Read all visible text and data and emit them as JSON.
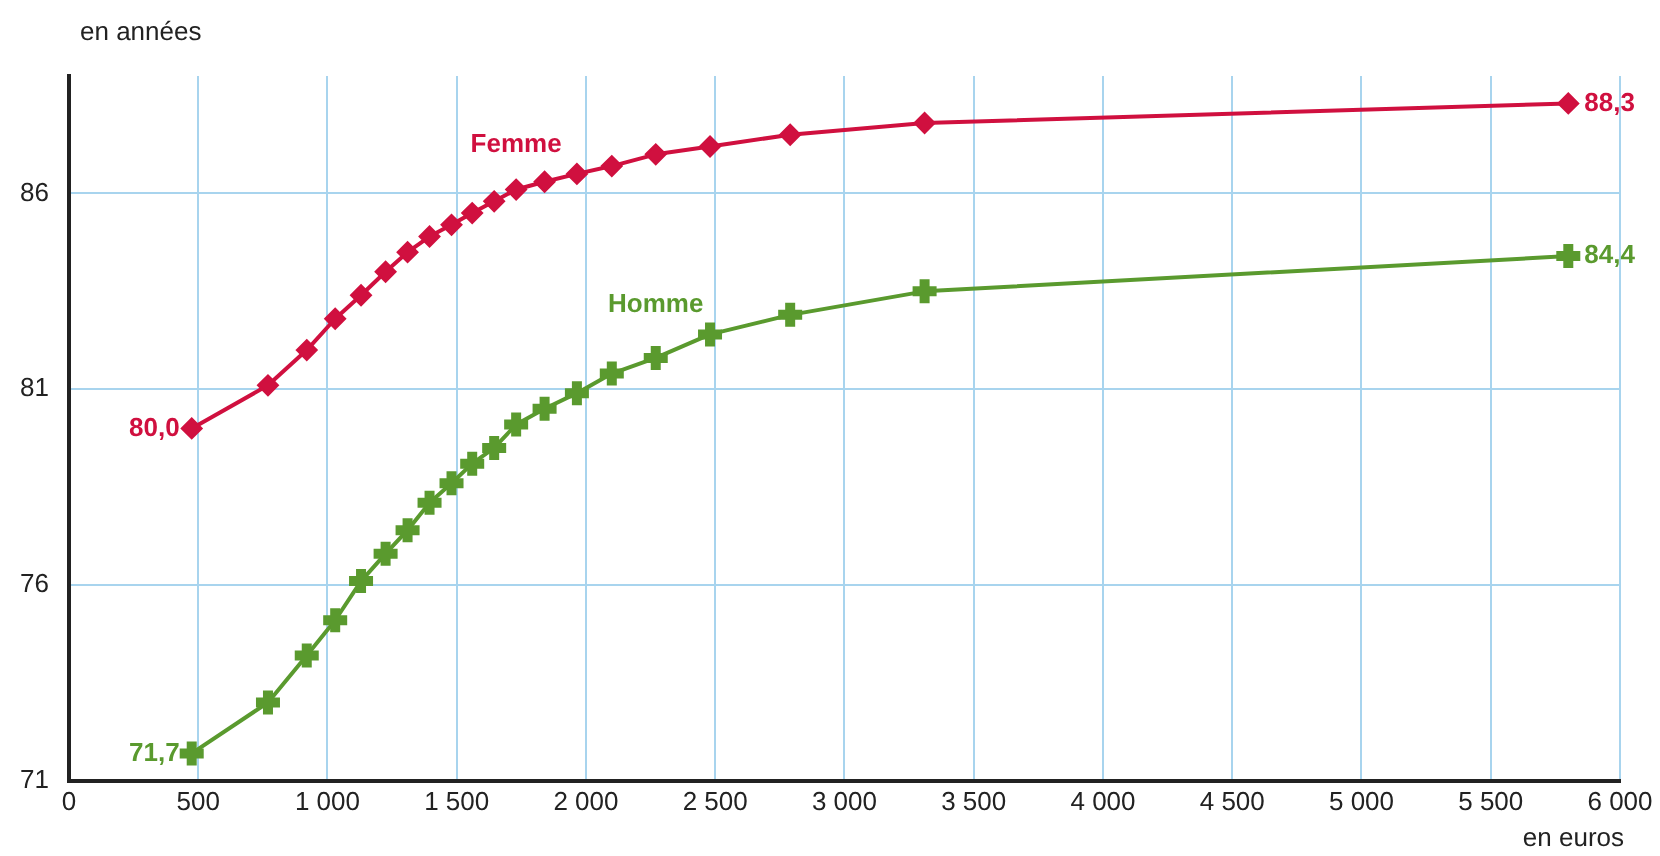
{
  "chart_data": {
    "type": "line",
    "ylabel": "en années",
    "xlabel": "en euros",
    "x": [
      475,
      770,
      920,
      1030,
      1130,
      1225,
      1310,
      1395,
      1480,
      1560,
      1645,
      1730,
      1840,
      1965,
      2100,
      2270,
      2480,
      2790,
      3310,
      5800
    ],
    "series": [
      {
        "name": "Femme",
        "color": "#d0103f",
        "marker": "diamond",
        "values": [
          80.0,
          81.1,
          82.0,
          82.8,
          83.4,
          84.0,
          84.5,
          84.9,
          85.2,
          85.5,
          85.8,
          86.1,
          86.3,
          86.5,
          86.7,
          87.0,
          87.2,
          87.5,
          87.8,
          88.3
        ],
        "value_labels": [
          "80,0",
          null,
          null,
          null,
          null,
          null,
          null,
          null,
          null,
          null,
          null,
          null,
          null,
          null,
          null,
          null,
          null,
          null,
          null,
          "88,3"
        ]
      },
      {
        "name": "Homme",
        "color": "#5a9a2e",
        "marker": "cross",
        "values": [
          71.7,
          73.0,
          74.2,
          75.1,
          76.1,
          76.8,
          77.4,
          78.1,
          78.6,
          79.1,
          79.5,
          80.1,
          80.5,
          80.9,
          81.4,
          81.8,
          82.4,
          82.9,
          83.5,
          84.4
        ],
        "value_labels": [
          "71,7",
          null,
          null,
          null,
          null,
          null,
          null,
          null,
          null,
          null,
          null,
          null,
          null,
          null,
          null,
          null,
          null,
          null,
          null,
          "84,4"
        ]
      }
    ],
    "xlim": [
      0,
      6000
    ],
    "xticks": [
      0,
      500,
      {
        "value": 1000,
        "label": "1 000"
      },
      {
        "value": 1500,
        "label": "1 500"
      },
      {
        "value": 2000,
        "label": "2 000"
      },
      {
        "value": 2500,
        "label": "2 500"
      },
      {
        "value": 3000,
        "label": "3 000"
      },
      {
        "value": 3500,
        "label": "3 500"
      },
      {
        "value": 4000,
        "label": "4 000"
      },
      {
        "value": 4500,
        "label": "4 500"
      },
      {
        "value": 5000,
        "label": "5 000"
      },
      {
        "value": 5500,
        "label": "5 500"
      },
      {
        "value": 6000,
        "label": "6 000"
      }
    ],
    "ylim": [
      71,
      89
    ],
    "yticks": [
      71,
      76,
      81,
      86
    ],
    "grid": true,
    "legend": false
  }
}
